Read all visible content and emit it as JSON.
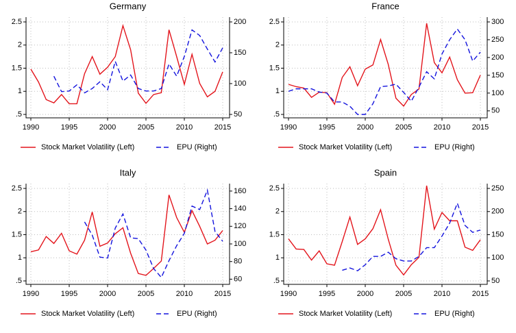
{
  "chart_data": [
    {
      "type": "line",
      "title": "Germany",
      "x": [
        1990,
        1991,
        1992,
        1993,
        1994,
        1995,
        1996,
        1997,
        1998,
        1999,
        2000,
        2001,
        2002,
        2003,
        2004,
        2005,
        2006,
        2007,
        2008,
        2009,
        2010,
        2011,
        2012,
        2013,
        2014,
        2015
      ],
      "xlim": [
        1990,
        2015
      ],
      "xticks": [
        1990,
        1995,
        2000,
        2005,
        2010,
        2015
      ],
      "ylim": [
        0.5,
        2.5
      ],
      "yticks": [
        {
          "value": 0.5,
          "label": ".5"
        },
        1,
        1.5,
        2,
        2.5
      ],
      "y2lim": [
        50,
        200
      ],
      "y2ticks": [
        50,
        100,
        150,
        200
      ],
      "grid": true,
      "series": [
        {
          "name": "Stock Market Volatility (Left)",
          "color": "#e3141b",
          "dash": false,
          "values": [
            1.48,
            1.2,
            0.82,
            0.75,
            0.93,
            0.73,
            0.73,
            1.38,
            1.75,
            1.37,
            1.52,
            1.75,
            2.42,
            1.9,
            0.96,
            0.74,
            0.93,
            0.97,
            2.33,
            1.75,
            1.15,
            1.8,
            1.17,
            0.88,
            1.0,
            1.42
          ]
        },
        {
          "name": "EPU (Right)",
          "color": "#1212dd",
          "dash": true,
          "axis": "y2",
          "values": [
            null,
            null,
            null,
            112,
            87,
            88,
            98,
            85,
            92,
            103,
            90,
            136,
            104,
            114,
            92,
            88,
            88,
            92,
            132,
            112,
            144,
            187,
            178,
            156,
            135,
            158
          ]
        }
      ]
    },
    {
      "type": "line",
      "title": "France",
      "x": [
        1990,
        1991,
        1992,
        1993,
        1994,
        1995,
        1996,
        1997,
        1998,
        1999,
        2000,
        2001,
        2002,
        2003,
        2004,
        2005,
        2006,
        2007,
        2008,
        2009,
        2010,
        2011,
        2012,
        2013,
        2014,
        2015
      ],
      "xlim": [
        1990,
        2015
      ],
      "xticks": [
        1990,
        1995,
        2000,
        2005,
        2010,
        2015
      ],
      "ylim": [
        0.5,
        2.5
      ],
      "yticks": [
        {
          "value": 0.5,
          "label": ".5"
        },
        1,
        1.5,
        2,
        2.5
      ],
      "y2lim": [
        40,
        300
      ],
      "y2ticks": [
        50,
        100,
        150,
        200,
        250,
        300
      ],
      "grid": true,
      "series": [
        {
          "name": "Stock Market Volatility (Left)",
          "color": "#e3141b",
          "dash": false,
          "values": [
            1.15,
            1.1,
            1.07,
            0.87,
            0.98,
            0.97,
            0.72,
            1.3,
            1.53,
            1.12,
            1.48,
            1.57,
            2.12,
            1.58,
            0.85,
            0.68,
            0.93,
            1.05,
            2.47,
            1.62,
            1.4,
            1.74,
            1.25,
            0.96,
            0.97,
            1.35
          ]
        },
        {
          "name": "EPU (Right)",
          "color": "#1212dd",
          "dash": true,
          "axis": "y2",
          "values": [
            105,
            112,
            112,
            112,
            103,
            100,
            75,
            75,
            63,
            40,
            40,
            70,
            118,
            120,
            125,
            102,
            77,
            117,
            160,
            140,
            210,
            250,
            280,
            250,
            190,
            215
          ]
        }
      ]
    },
    {
      "type": "line",
      "title": "Italy",
      "x": [
        1990,
        1991,
        1992,
        1993,
        1994,
        1995,
        1996,
        1997,
        1998,
        1999,
        2000,
        2001,
        2002,
        2003,
        2004,
        2005,
        2006,
        2007,
        2008,
        2009,
        2010,
        2011,
        2012,
        2013,
        2014,
        2015
      ],
      "xlim": [
        1990,
        2015
      ],
      "xticks": [
        1990,
        1995,
        2000,
        2005,
        2010,
        2015
      ],
      "ylim": [
        0.5,
        2.5
      ],
      "yticks": [
        {
          "value": 0.5,
          "label": ".5"
        },
        1,
        1.5,
        2,
        2.5
      ],
      "y2lim": [
        58,
        163
      ],
      "y2ticks": [
        60,
        80,
        100,
        120,
        140,
        160
      ],
      "grid": true,
      "series": [
        {
          "name": "Stock Market Volatility (Left)",
          "color": "#e3141b",
          "dash": false,
          "values": [
            1.13,
            1.17,
            1.46,
            1.31,
            1.53,
            1.15,
            1.08,
            1.38,
            1.99,
            1.25,
            1.32,
            1.52,
            1.65,
            1.1,
            0.66,
            0.62,
            0.77,
            0.93,
            2.36,
            1.87,
            1.55,
            2.02,
            1.68,
            1.3,
            1.38,
            1.59
          ]
        },
        {
          "name": "EPU (Right)",
          "color": "#1212dd",
          "dash": true,
          "axis": "y2",
          "values": [
            null,
            null,
            null,
            null,
            null,
            null,
            null,
            125,
            110,
            85,
            84,
            118,
            134,
            107,
            106,
            93,
            72,
            62,
            81,
            98,
            112,
            143,
            139,
            161,
            114,
            103
          ]
        }
      ]
    },
    {
      "type": "line",
      "title": "Spain",
      "x": [
        1990,
        1991,
        1992,
        1993,
        1994,
        1995,
        1996,
        1997,
        1998,
        1999,
        2000,
        2001,
        2002,
        2003,
        2004,
        2005,
        2006,
        2007,
        2008,
        2009,
        2010,
        2011,
        2012,
        2013,
        2014,
        2015
      ],
      "xlim": [
        1990,
        2015
      ],
      "xticks": [
        1990,
        1995,
        2000,
        2005,
        2010,
        2015
      ],
      "ylim": [
        0.5,
        2.5
      ],
      "yticks": [
        {
          "value": 0.5,
          "label": ".5"
        },
        1,
        1.5,
        2,
        2.5
      ],
      "y2lim": [
        50,
        250
      ],
      "y2ticks": [
        50,
        100,
        150,
        200,
        250
      ],
      "grid": true,
      "series": [
        {
          "name": "Stock Market Volatility (Left)",
          "color": "#e3141b",
          "dash": false,
          "values": [
            1.41,
            1.19,
            1.18,
            0.95,
            1.15,
            0.87,
            0.84,
            1.35,
            1.88,
            1.29,
            1.41,
            1.63,
            2.04,
            1.4,
            0.84,
            0.63,
            0.85,
            1.01,
            2.56,
            1.62,
            1.98,
            1.8,
            1.8,
            1.23,
            1.16,
            1.39
          ]
        },
        {
          "name": "EPU (Right)",
          "color": "#1212dd",
          "dash": true,
          "axis": "y2",
          "values": [
            null,
            null,
            null,
            null,
            null,
            null,
            null,
            73,
            78,
            72,
            85,
            103,
            103,
            112,
            98,
            93,
            93,
            103,
            122,
            122,
            147,
            175,
            218,
            170,
            155,
            160
          ]
        }
      ]
    }
  ]
}
